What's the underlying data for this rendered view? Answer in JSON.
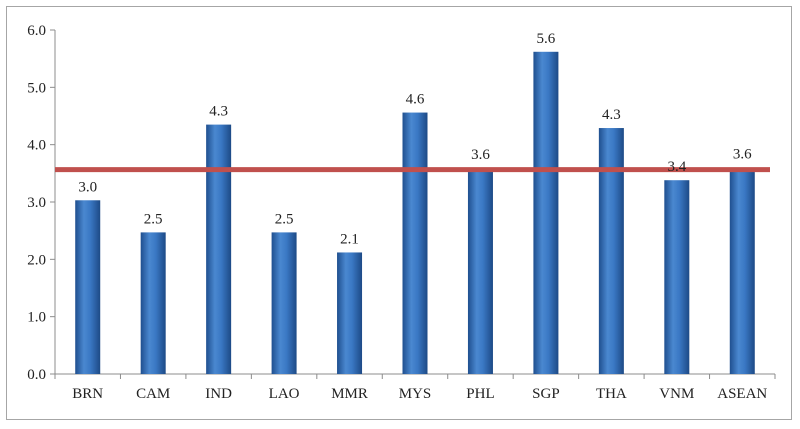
{
  "chart_data": {
    "type": "bar",
    "categories": [
      "BRN",
      "CAM",
      "IND",
      "LAO",
      "MMR",
      "MYS",
      "PHL",
      "SGP",
      "THA",
      "VNM",
      "ASEAN"
    ],
    "values": [
      3.0,
      2.5,
      4.3,
      2.5,
      2.1,
      4.6,
      3.6,
      5.6,
      4.3,
      3.4,
      3.6
    ],
    "plotted_values": [
      3.03,
      2.47,
      4.35,
      2.47,
      2.12,
      4.56,
      3.59,
      5.62,
      4.29,
      3.38,
      3.6
    ],
    "data_labels": [
      "3.0",
      "2.5",
      "4.3",
      "2.5",
      "2.1",
      "4.6",
      "3.6",
      "5.6",
      "4.3",
      "3.4",
      "3.6"
    ],
    "yticks": [
      "0.0",
      "1.0",
      "2.0",
      "3.0",
      "4.0",
      "5.0",
      "6.0"
    ],
    "ylim": [
      0,
      6
    ],
    "reference_line": {
      "value": 3.6,
      "color": "#c0504d"
    },
    "bar_color": "#2e6bb5",
    "grid": false,
    "legend": "none",
    "title": "",
    "xlabel": "",
    "ylabel": ""
  }
}
